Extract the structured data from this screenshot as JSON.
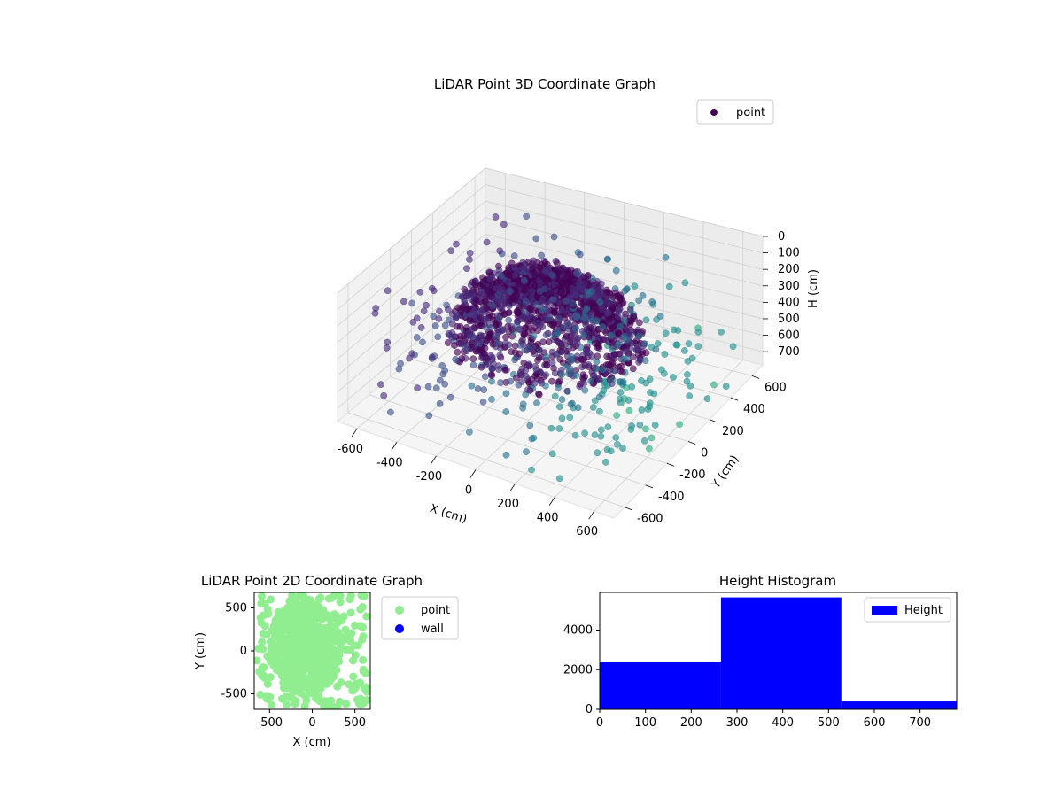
{
  "chart_data": [
    {
      "type": "scatter",
      "projection": "3d",
      "title": "LiDAR Point 3D Coordinate Graph",
      "xlabel": "X (cm)",
      "ylabel": "Y (cm)",
      "zlabel": "H (cm)",
      "xlim": [
        -700,
        700
      ],
      "ylim": [
        -700,
        700
      ],
      "zlim": [
        0,
        780
      ],
      "z_inverted": true,
      "xticks": [
        -600,
        -400,
        -200,
        0,
        200,
        400,
        600
      ],
      "yticks": [
        -600,
        -400,
        -200,
        0,
        200,
        400,
        600
      ],
      "zticks": [
        0,
        100,
        200,
        300,
        400,
        500,
        600,
        700
      ],
      "grid": true,
      "legend": {
        "placement": "top-right",
        "entries": [
          {
            "name": "point",
            "color": "#440154"
          }
        ]
      },
      "colormap": "viridis",
      "description_points": "dense dome of points (radius ~350-450 cm) plus sparse surrounding grid of points at ~600 cm offsets"
    },
    {
      "type": "scatter",
      "title": "LiDAR Point 2D Coordinate Graph",
      "xlabel": "X (cm)",
      "ylabel": "Y (cm)",
      "xlim": [
        -680,
        680
      ],
      "ylim": [
        -680,
        680
      ],
      "xticks": [
        -500,
        0,
        500
      ],
      "yticks": [
        -500,
        0,
        500
      ],
      "legend": {
        "placement": "outside-right",
        "entries": [
          {
            "name": "point",
            "color": "#90ee90"
          },
          {
            "name": "wall",
            "color": "#0000ff"
          }
        ]
      }
    },
    {
      "type": "bar",
      "title": "Height Histogram",
      "bins": [
        [
          0,
          265
        ],
        [
          265,
          528
        ],
        [
          528,
          792
        ]
      ],
      "values": [
        2400,
        5650,
        400
      ],
      "xlim": [
        0,
        780
      ],
      "ylim": [
        0,
        5900
      ],
      "xticks": [
        0,
        100,
        200,
        300,
        400,
        500,
        600,
        700
      ],
      "yticks": [
        0,
        2000,
        4000
      ],
      "color": "#0000ff",
      "legend": {
        "placement": "top-right",
        "entries": [
          {
            "name": "Height",
            "color": "#0000ff"
          }
        ]
      }
    }
  ]
}
